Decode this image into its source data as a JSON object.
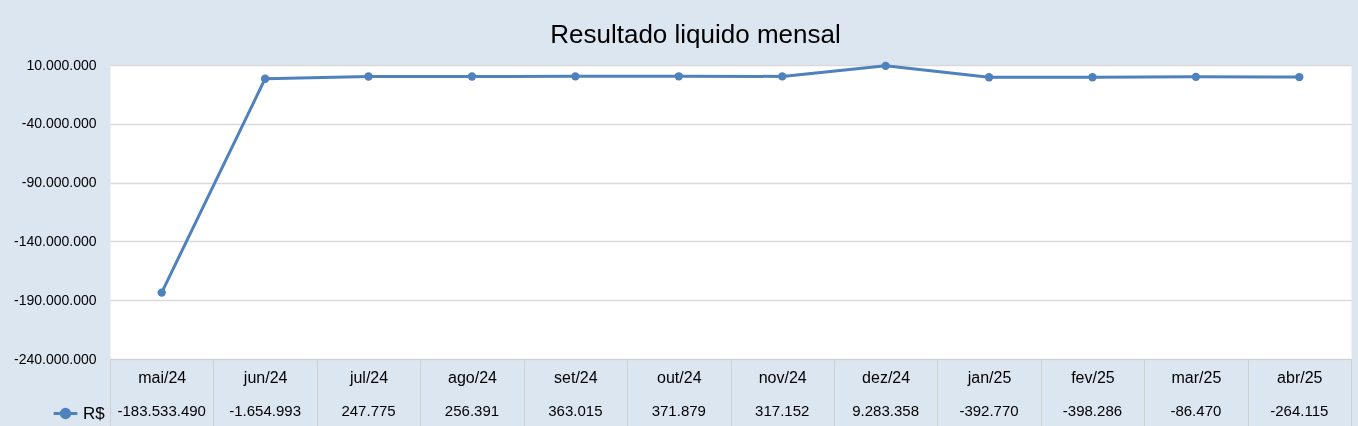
{
  "chart_data": {
    "type": "line",
    "title": "Resultado liquido mensal",
    "categories": [
      "mai/24",
      "jun/24",
      "jul/24",
      "ago/24",
      "set/24",
      "out/24",
      "nov/24",
      "dez/24",
      "jan/25",
      "fev/25",
      "mar/25",
      "abr/25"
    ],
    "series": [
      {
        "name": "R$",
        "color": "#4f81bd",
        "values": [
          -183533490,
          -1654993,
          247775,
          256391,
          363015,
          371879,
          317152,
          9283358,
          -392770,
          -398286,
          -86470,
          -264115
        ],
        "value_labels": [
          "-183.533.490",
          "-1.654.993",
          "247.775",
          "256.391",
          "363.015",
          "371.879",
          "317.152",
          "9.283.358",
          "-392.770",
          "-398.286",
          "-86.470",
          "-264.115"
        ]
      }
    ],
    "ylim": [
      -240000000,
      10000000
    ],
    "yticks": [
      {
        "value": -240000000,
        "label": "-240.000.000"
      },
      {
        "value": -190000000,
        "label": "-190.000.000"
      },
      {
        "value": -140000000,
        "label": "-140.000.000"
      },
      {
        "value": -90000000,
        "label": "-90.000.000"
      },
      {
        "value": -40000000,
        "label": "-40.000.000"
      },
      {
        "value": 10000000,
        "label": "10.000.000"
      }
    ],
    "grid": "y",
    "legend": "bottom left",
    "marker": "circle",
    "line_style": "solid"
  }
}
